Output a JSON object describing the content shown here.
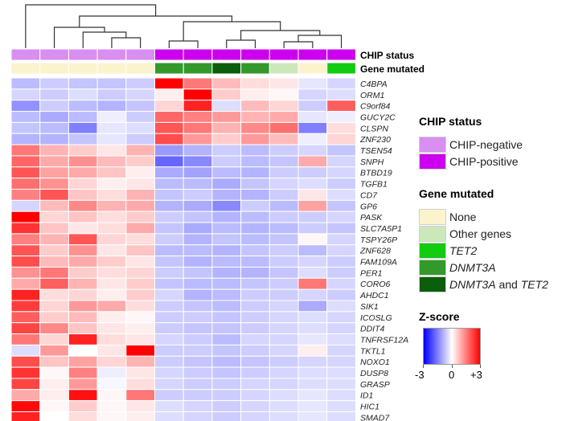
{
  "chart_data": {
    "type": "heatmap",
    "title": "",
    "n_samples": 12,
    "annotation_tracks": [
      {
        "name": "CHIP status",
        "values": [
          "CHIP-negative",
          "CHIP-negative",
          "CHIP-negative",
          "CHIP-negative",
          "CHIP-negative",
          "CHIP-positive",
          "CHIP-positive",
          "CHIP-positive",
          "CHIP-positive",
          "CHIP-positive",
          "CHIP-positive",
          "CHIP-positive"
        ]
      },
      {
        "name": "Gene mutated",
        "values": [
          "None",
          "None",
          "None",
          "None",
          "None",
          "DNMT3A",
          "DNMT3A",
          "DNMT3A and TET2",
          "DNMT3A",
          "Other genes",
          "None",
          "TET2"
        ]
      }
    ],
    "genes": [
      "C4BPA",
      "ORM1",
      "C9orf84",
      "GUCY2C",
      "CLSPN",
      "ZNF230",
      "TSEN54",
      "SNPH",
      "BTBD19",
      "TGFB1",
      "CD7",
      "GP6",
      "PASK",
      "SLC7A5P1",
      "TSPY26P",
      "ZNF628",
      "FAM109A",
      "PER1",
      "CORO6",
      "AHDC1",
      "SIK1",
      "ICOSLG",
      "DDIT4",
      "TNFRSF12A",
      "TKTL1",
      "NOXO1",
      "DUSP8",
      "GRASP",
      "ID1",
      "HIC1",
      "SMAD7"
    ],
    "z_scores": [
      [
        -0.8,
        -0.6,
        -0.7,
        -0.7,
        -0.6,
        3.0,
        1.6,
        0.8,
        0.4,
        0.3,
        -0.3,
        -0.5
      ],
      [
        -0.5,
        -0.6,
        -0.4,
        -0.6,
        -0.5,
        0.2,
        3.0,
        0.6,
        0.2,
        0.1,
        -0.5,
        -0.4
      ],
      [
        -1.3,
        -0.6,
        -0.8,
        -0.9,
        -0.7,
        0.5,
        2.6,
        -0.4,
        0.8,
        0.5,
        -0.6,
        1.9
      ],
      [
        -0.8,
        -1.0,
        -0.8,
        -0.2,
        -0.6,
        1.8,
        1.5,
        1.2,
        0.9,
        1.0,
        -0.3,
        -0.2
      ],
      [
        -0.7,
        -0.8,
        -1.5,
        -0.3,
        -0.4,
        2.0,
        1.6,
        0.9,
        1.4,
        1.7,
        -1.5,
        0.4
      ],
      [
        -0.9,
        -0.9,
        -0.7,
        -0.3,
        -0.6,
        2.1,
        1.2,
        0.6,
        1.2,
        0.8,
        -0.2,
        0.5
      ],
      [
        1.6,
        0.9,
        0.6,
        0.3,
        0.9,
        -1.2,
        -0.9,
        -0.6,
        -0.8,
        -0.6,
        -0.5,
        -0.7
      ],
      [
        1.8,
        1.0,
        1.3,
        0.8,
        0.6,
        -1.8,
        -1.4,
        -0.6,
        -0.8,
        -0.7,
        1.0,
        -0.5
      ],
      [
        2.0,
        1.1,
        1.0,
        0.7,
        0.2,
        -1.0,
        -1.1,
        -0.8,
        -0.9,
        -0.6,
        -0.6,
        -0.5
      ],
      [
        1.7,
        1.3,
        0.5,
        0.2,
        0.3,
        -0.8,
        -0.8,
        -1.0,
        -0.7,
        -0.5,
        -0.4,
        -0.6
      ],
      [
        1.5,
        2.0,
        0.7,
        0.4,
        0.9,
        -0.7,
        -0.6,
        -0.9,
        -0.9,
        -0.6,
        0.3,
        -0.4
      ],
      [
        -0.5,
        0.8,
        1.4,
        0.9,
        1.0,
        -0.9,
        -1.0,
        -1.4,
        -0.6,
        -0.8,
        1.1,
        -0.7
      ],
      [
        3.0,
        0.5,
        0.7,
        0.4,
        0.6,
        -0.6,
        -0.7,
        -0.9,
        -0.8,
        -0.6,
        -0.6,
        -0.5
      ],
      [
        2.4,
        0.7,
        0.3,
        0.4,
        1.0,
        -0.7,
        -1.0,
        -0.8,
        -0.9,
        -0.8,
        -0.6,
        -0.7
      ],
      [
        1.5,
        0.9,
        2.0,
        0.5,
        0.4,
        -0.6,
        -0.9,
        -0.7,
        -0.8,
        -0.7,
        0.1,
        -0.5
      ],
      [
        2.0,
        0.6,
        1.3,
        0.3,
        0.7,
        -0.8,
        -0.8,
        -0.9,
        -0.7,
        -0.6,
        -0.8,
        -0.5
      ],
      [
        2.1,
        0.8,
        1.0,
        0.6,
        0.3,
        -0.7,
        -0.9,
        -0.8,
        -0.8,
        -0.6,
        -0.5,
        -0.6
      ],
      [
        1.3,
        1.6,
        0.6,
        0.4,
        0.5,
        -0.6,
        -0.7,
        -0.9,
        -0.9,
        -0.7,
        -0.4,
        -0.6
      ],
      [
        1.0,
        1.9,
        0.9,
        0.3,
        0.6,
        -0.7,
        -0.8,
        -0.8,
        -0.7,
        -0.6,
        1.6,
        -0.5
      ],
      [
        2.6,
        0.4,
        0.5,
        0.2,
        0.6,
        -0.5,
        -0.9,
        -0.8,
        -0.6,
        -0.6,
        -0.5,
        -0.6
      ],
      [
        2.3,
        0.5,
        1.2,
        1.0,
        0.4,
        -0.6,
        -0.7,
        -0.8,
        -0.6,
        -0.5,
        -1.0,
        -0.4
      ],
      [
        1.9,
        0.6,
        0.8,
        0.2,
        0.1,
        -0.6,
        -0.6,
        -0.7,
        -0.6,
        -0.5,
        -0.4,
        -0.5
      ],
      [
        2.2,
        1.4,
        0.7,
        0.3,
        0.2,
        -0.6,
        -0.7,
        -0.7,
        -0.6,
        -0.5,
        -0.4,
        -0.5
      ],
      [
        1.6,
        0.5,
        2.6,
        0.4,
        0.3,
        -0.5,
        -0.6,
        -0.8,
        -0.5,
        -0.5,
        -0.3,
        -0.4
      ],
      [
        -0.4,
        1.2,
        0.0,
        0.3,
        3.0,
        -0.6,
        -0.6,
        -0.7,
        -0.6,
        -0.5,
        0.2,
        -0.5
      ],
      [
        2.1,
        0.7,
        1.1,
        0.5,
        0.9,
        -0.6,
        -0.7,
        -0.8,
        -0.7,
        -0.6,
        -0.5,
        -0.5
      ],
      [
        2.4,
        0.1,
        1.5,
        -0.2,
        0.3,
        -0.5,
        -0.6,
        -0.7,
        -0.6,
        -0.5,
        -0.4,
        -0.4
      ],
      [
        2.2,
        0.2,
        1.2,
        -0.1,
        0.4,
        -0.5,
        -0.6,
        -0.6,
        -0.5,
        -0.5,
        -0.4,
        -0.4
      ],
      [
        1.0,
        0.2,
        2.8,
        0.1,
        1.6,
        -0.6,
        -0.6,
        -0.6,
        -0.5,
        -0.4,
        -0.3,
        -0.4
      ],
      [
        2.9,
        0.1,
        0.6,
        0.1,
        0.3,
        -0.4,
        -0.5,
        -0.6,
        -0.5,
        -0.4,
        -0.3,
        -0.4
      ],
      [
        2.6,
        0.0,
        0.4,
        0.1,
        0.2,
        -0.4,
        -0.5,
        -0.6,
        -0.5,
        -0.4,
        -0.3,
        -0.4
      ]
    ],
    "color_scale": {
      "min": -3,
      "mid": 0,
      "max": 3,
      "low": "#0000ff",
      "center": "#ffffff",
      "high": "#ff0000"
    },
    "dendrogram": "hierarchical clustering of samples (shown above the heatmap)"
  },
  "track_labels": {
    "chip": "CHIP status",
    "gene": "Gene mutated"
  },
  "colors": {
    "CHIP-negative": "#d88ff0",
    "CHIP-positive": "#cc00ee",
    "None": "#fbf3cc",
    "Other genes": "#cce8bb",
    "TET2": "#11cc11",
    "DNMT3A": "#33992a",
    "DNMT3A and TET2": "#0b5e0b"
  },
  "legend": {
    "chip_title": "CHIP status",
    "chip_items": [
      "CHIP-negative",
      "CHIP-positive"
    ],
    "gene_title": "Gene mutated",
    "gene_items": [
      {
        "key": "None",
        "label": "None",
        "italic": false
      },
      {
        "key": "Other genes",
        "label": "Other genes",
        "italic": false
      },
      {
        "key": "TET2",
        "label": "TET2",
        "italic": true
      },
      {
        "key": "DNMT3A",
        "label": "DNMT3A",
        "italic": true
      },
      {
        "key": "DNMT3A and TET2",
        "prefix": "DNMT3A",
        "mid": " and ",
        "suffix": "TET2"
      }
    ],
    "zscore_title": "Z-score",
    "ticks": [
      "-3",
      "0",
      "+3"
    ]
  }
}
